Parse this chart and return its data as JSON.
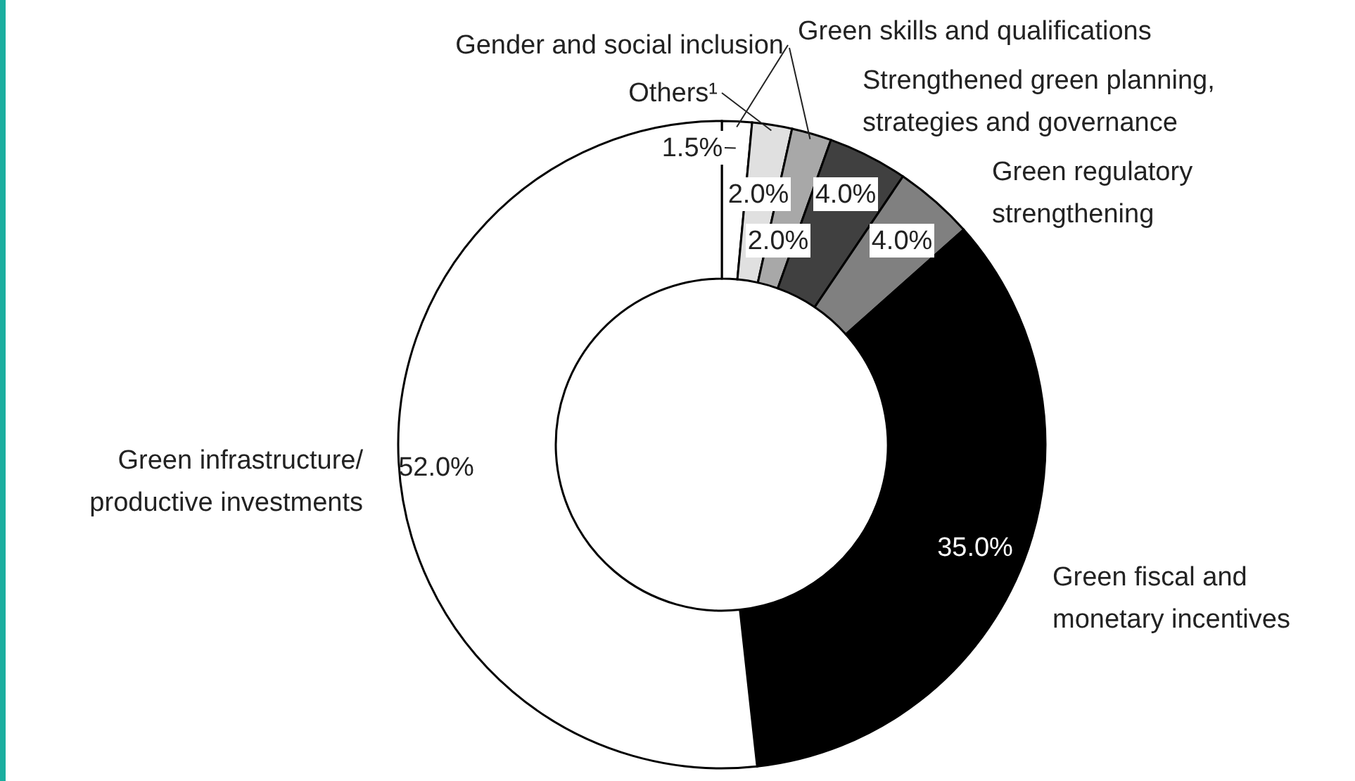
{
  "chart_data": {
    "type": "donut",
    "categories": [
      "Gender and social inclusion",
      "Others¹",
      "Green skills and qualifications",
      "Strengthened green planning, strategies and governance",
      "Green regulatory strengthening",
      "Green fiscal and monetary incentives",
      "Green infrastructure/ productive investments"
    ],
    "values": [
      1.5,
      2.0,
      2.0,
      4.0,
      4.0,
      35.0,
      52.0
    ],
    "colors": [
      "#ffffff",
      "#e0e0e0",
      "#a8a8a8",
      "#404040",
      "#808080",
      "#000000",
      "#ffffff"
    ],
    "value_labels": [
      "1.5%",
      "2.0%",
      "2.0%",
      "4.0%",
      "4.0%",
      "35.0%",
      "52.0%"
    ]
  }
}
